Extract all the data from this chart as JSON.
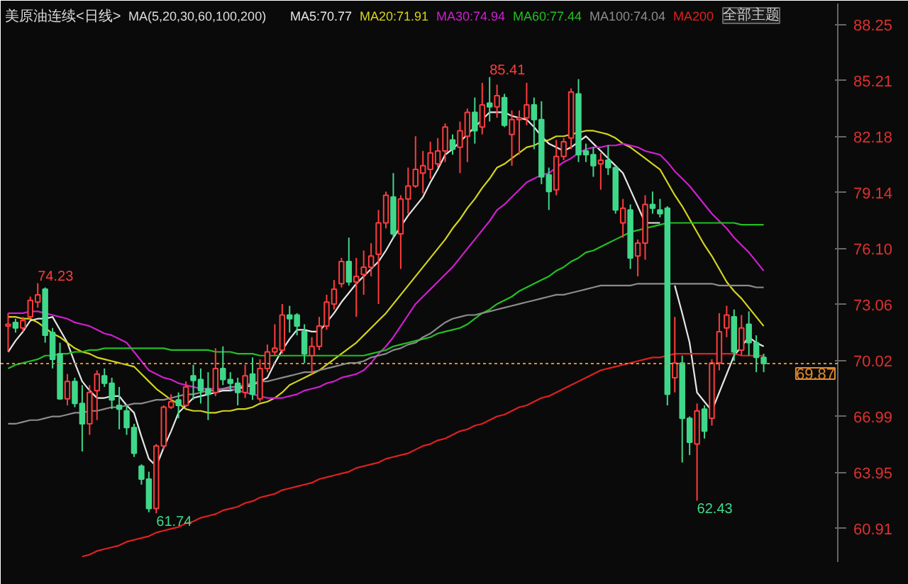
{
  "chart_data": {
    "type": "candlestick",
    "title": "美原油连续<日线>",
    "legend_title": "MA(5,20,30,60,100,200)",
    "grid": false,
    "tick_labels": "y",
    "ylim": [
      59.1,
      89.4
    ],
    "yticks": [
      60.91,
      63.95,
      66.99,
      70.02,
      73.06,
      {
        "value": 76.1,
        "label": "76.10"
      },
      79.14,
      82.18,
      85.21,
      88.25
    ],
    "categories": [
      null,
      null,
      null,
      null,
      null,
      null,
      null,
      null,
      null,
      null,
      null,
      null,
      null,
      null,
      null,
      null,
      null,
      null,
      null,
      null,
      null,
      null,
      null,
      null,
      null,
      null,
      null,
      null,
      null,
      null,
      null,
      null,
      null,
      null,
      null,
      null,
      null,
      null,
      null,
      null,
      null,
      null,
      null,
      null,
      null,
      null,
      null,
      null,
      null,
      null,
      null,
      null,
      null,
      null,
      null,
      null,
      null,
      null,
      null,
      null,
      null,
      null,
      null,
      null,
      null,
      null,
      null,
      null,
      null,
      null,
      null,
      null,
      null,
      null,
      null,
      null,
      null,
      null,
      null,
      null,
      null,
      null,
      null,
      null,
      null,
      null,
      null,
      null,
      null,
      null,
      null,
      null,
      null,
      null,
      null,
      null,
      null,
      null,
      null,
      null,
      null,
      null,
      null
    ],
    "ohlc": [
      [
        71.9,
        72.6,
        70.5,
        72.0
      ],
      [
        72.1,
        72.3,
        71.55,
        71.8
      ],
      [
        71.8,
        72.4,
        71.6,
        72.2
      ],
      [
        72.4,
        73.5,
        72.3,
        73.3
      ],
      [
        73.2,
        74.23,
        72.9,
        73.6
      ],
      [
        73.9,
        74.0,
        71.0,
        71.4
      ],
      [
        71.55,
        71.8,
        69.6,
        70.1
      ],
      [
        70.4,
        71.0,
        67.9,
        67.95
      ],
      [
        67.95,
        69.3,
        67.6,
        68.9
      ],
      [
        68.9,
        69.1,
        67.5,
        67.7
      ],
      [
        67.7,
        68.7,
        65.1,
        66.6
      ],
      [
        66.6,
        68.7,
        66.0,
        68.3
      ],
      [
        68.4,
        69.5,
        66.8,
        69.3
      ],
      [
        69.2,
        69.6,
        68.6,
        68.8
      ],
      [
        68.8,
        69.1,
        67.4,
        67.9
      ],
      [
        67.6,
        68.6,
        66.3,
        67.4
      ],
      [
        67.3,
        67.6,
        66.0,
        66.4
      ],
      [
        66.4,
        66.6,
        64.8,
        65.0
      ],
      [
        64.3,
        64.4,
        63.3,
        63.6
      ],
      [
        63.6,
        64.0,
        61.8,
        62.0
      ],
      [
        62.0,
        65.5,
        61.74,
        65.4
      ],
      [
        65.4,
        67.6,
        65.2,
        67.5
      ],
      [
        67.5,
        68.2,
        67.4,
        67.8
      ],
      [
        67.9,
        68.3,
        66.9,
        67.6
      ],
      [
        67.6,
        68.9,
        67.5,
        68.6
      ],
      [
        69.2,
        69.8,
        67.9,
        68.95
      ],
      [
        69.0,
        69.6,
        67.7,
        68.4
      ],
      [
        68.5,
        69.4,
        66.8,
        68.2
      ],
      [
        68.3,
        70.7,
        68.1,
        69.6
      ],
      [
        69.6,
        70.8,
        68.7,
        69.0
      ],
      [
        69.0,
        69.4,
        68.4,
        68.8
      ],
      [
        68.8,
        69.1,
        67.6,
        68.3
      ],
      [
        68.3,
        69.8,
        68.0,
        69.2
      ],
      [
        69.3,
        70.2,
        67.9,
        68.2
      ],
      [
        67.95,
        70.1,
        67.8,
        69.6
      ],
      [
        69.6,
        70.9,
        69.4,
        70.5
      ],
      [
        70.5,
        72.0,
        70.3,
        70.7
      ],
      [
        70.6,
        73.1,
        70.4,
        72.5
      ],
      [
        72.5,
        73.0,
        71.55,
        72.3
      ],
      [
        72.5,
        72.6,
        71.4,
        71.9
      ],
      [
        71.6,
        72.0,
        69.9,
        70.4
      ],
      [
        70.3,
        71.3,
        69.3,
        70.8
      ],
      [
        70.8,
        72.4,
        70.6,
        71.9
      ],
      [
        71.9,
        73.6,
        71.7,
        73.2
      ],
      [
        73.1,
        74.4,
        72.8,
        73.9
      ],
      [
        74.2,
        75.6,
        74.0,
        75.4
      ],
      [
        75.4,
        76.7,
        74.1,
        74.3
      ],
      [
        74.3,
        75.6,
        72.4,
        74.6
      ],
      [
        74.7,
        76.0,
        73.6,
        75.1
      ],
      [
        75.1,
        76.4,
        74.6,
        75.7
      ],
      [
        75.8,
        78.2,
        73.1,
        77.5
      ],
      [
        77.5,
        79.2,
        77.2,
        79.0
      ],
      [
        78.9,
        80.2,
        76.7,
        76.9
      ],
      [
        76.9,
        79.0,
        75.0,
        78.8
      ],
      [
        78.8,
        80.5,
        78.0,
        79.5
      ],
      [
        79.5,
        82.2,
        79.4,
        80.4
      ],
      [
        80.2,
        81.4,
        79.1,
        80.6
      ],
      [
        80.4,
        81.9,
        79.9,
        81.3
      ],
      [
        80.7,
        82.1,
        80.5,
        81.4
      ],
      [
        81.4,
        82.9,
        80.8,
        82.7
      ],
      [
        82.0,
        82.3,
        81.2,
        81.5
      ],
      [
        81.6,
        83.0,
        80.2,
        82.5
      ],
      [
        82.2,
        83.7,
        80.8,
        83.5
      ],
      [
        83.5,
        84.3,
        81.8,
        82.5
      ],
      [
        82.7,
        85.1,
        82.3,
        83.9
      ],
      [
        84.0,
        85.41,
        83.0,
        83.8
      ],
      [
        83.8,
        85.0,
        83.2,
        84.4
      ],
      [
        84.3,
        84.5,
        82.7,
        82.8
      ],
      [
        82.3,
        83.6,
        80.6,
        83.1
      ],
      [
        83.1,
        83.6,
        81.2,
        83.2
      ],
      [
        83.2,
        85.1,
        82.8,
        83.9
      ],
      [
        83.9,
        84.3,
        81.5,
        83.1
      ],
      [
        83.1,
        84.1,
        79.6,
        80.0
      ],
      [
        80.1,
        80.5,
        78.2,
        79.2
      ],
      [
        79.3,
        82.0,
        79.0,
        81.1
      ],
      [
        81.1,
        82.1,
        80.9,
        81.9
      ],
      [
        82.1,
        84.8,
        81.5,
        84.6
      ],
      [
        84.5,
        85.3,
        80.8,
        81.2
      ],
      [
        81.4,
        81.8,
        80.8,
        81.2
      ],
      [
        81.2,
        81.6,
        80.0,
        80.6
      ],
      [
        80.7,
        81.3,
        79.3,
        80.9
      ],
      [
        80.9,
        81.7,
        80.1,
        80.5
      ],
      [
        80.5,
        80.6,
        78.0,
        78.2
      ],
      [
        77.5,
        78.8,
        76.7,
        78.3
      ],
      [
        78.2,
        78.5,
        75.0,
        75.6
      ],
      [
        75.7,
        76.6,
        74.6,
        76.4
      ],
      [
        76.4,
        79.0,
        75.5,
        78.5
      ],
      [
        78.5,
        79.2,
        78.0,
        78.3
      ],
      [
        78.2,
        78.8,
        77.8,
        78.0
      ],
      [
        78.3,
        78.4,
        67.6,
        68.2
      ],
      [
        69.1,
        72.4,
        68.3,
        69.9
      ],
      [
        69.9,
        70.3,
        64.5,
        66.9
      ],
      [
        66.9,
        67.0,
        64.9,
        65.6
      ],
      [
        65.5,
        67.7,
        62.43,
        67.3
      ],
      [
        67.4,
        67.6,
        65.8,
        66.2
      ],
      [
        66.9,
        70.1,
        66.5,
        69.9
      ],
      [
        69.9,
        72.6,
        69.5,
        71.6
      ],
      [
        71.8,
        73.0,
        71.3,
        72.5
      ],
      [
        72.4,
        72.8,
        70.0,
        70.5
      ],
      [
        70.6,
        72.5,
        70.3,
        71.8
      ],
      [
        72.0,
        72.7,
        70.3,
        71.0
      ],
      [
        71.0,
        71.4,
        69.4,
        70.2
      ],
      [
        70.2,
        70.4,
        69.4,
        69.87
      ]
    ],
    "series": [
      {
        "type": "line",
        "name": "MA5:70.77",
        "color": "#e6e6e6",
        "values": [
          70.5,
          71.1,
          71.6,
          72.2,
          72.3,
          72.3,
          72.4,
          71.7,
          71.0,
          69.9,
          68.9,
          68.4,
          68.0,
          68.0,
          68.1,
          68.1,
          67.6,
          67.2,
          65.9,
          64.7,
          64.3,
          65.3,
          66.2,
          67.2,
          67.6,
          68.0,
          68.1,
          68.2,
          68.3,
          68.4,
          68.4,
          68.5,
          68.6,
          68.7,
          68.9,
          69.1,
          69.9,
          70.6,
          71.2,
          71.7,
          71.7,
          71.6,
          71.6,
          72.1,
          72.6,
          73.2,
          73.7,
          74.2,
          74.6,
          75.0,
          75.4,
          76.0,
          76.7,
          77.3,
          77.9,
          78.4,
          78.9,
          79.7,
          80.4,
          81.2,
          81.5,
          81.9,
          82.3,
          82.7,
          83.1,
          83.5,
          83.5,
          83.5,
          83.3,
          83.2,
          83.1,
          82.7,
          82.2,
          81.8,
          81.6,
          81.4,
          81.6,
          81.9,
          82.2,
          81.8,
          81.4,
          81.0,
          80.6,
          80.2,
          79.3,
          78.4,
          77.5,
          77.5,
          77.5,
          null,
          74.1,
          72.6,
          71.0,
          68.3,
          67.8,
          67.3,
          68.3,
          69.3,
          70.3,
          70.8,
          71.3,
          71.0,
          70.8
        ]
      },
      {
        "type": "line",
        "name": "MA20:71.91",
        "color": "#d4d41e",
        "values": [
          72.4,
          72.4,
          72.3,
          72.3,
          72.1,
          71.8,
          71.5,
          71.3,
          71.0,
          70.7,
          70.5,
          70.4,
          70.2,
          70.1,
          70.0,
          69.9,
          69.8,
          69.7,
          69.3,
          68.9,
          68.5,
          68.2,
          67.9,
          67.7,
          67.4,
          67.3,
          67.3,
          67.2,
          67.2,
          67.3,
          67.3,
          67.4,
          67.4,
          67.5,
          67.7,
          67.8,
          68.0,
          68.3,
          68.7,
          68.9,
          69.1,
          69.3,
          69.5,
          69.8,
          70.1,
          70.4,
          70.7,
          71.0,
          71.4,
          71.8,
          72.2,
          72.6,
          73.1,
          73.6,
          74.1,
          74.6,
          75.1,
          75.6,
          76.1,
          76.6,
          77.2,
          77.7,
          78.3,
          78.8,
          79.4,
          79.9,
          80.5,
          80.7,
          81.0,
          81.3,
          81.6,
          81.7,
          81.9,
          82.0,
          82.2,
          82.2,
          82.3,
          82.4,
          82.5,
          82.5,
          82.4,
          82.3,
          82.1,
          81.8,
          81.6,
          81.3,
          81.0,
          80.7,
          80.4,
          79.7,
          79.0,
          78.4,
          77.7,
          77.0,
          76.3,
          75.7,
          75.0,
          74.3,
          73.8,
          73.4,
          72.9,
          72.4,
          71.9
        ]
      },
      {
        "type": "line",
        "name": "MA30:74.94",
        "color": "#d01fd0",
        "values": [
          72.6,
          72.6,
          72.6,
          72.7,
          72.7,
          72.6,
          72.5,
          72.4,
          72.3,
          72.1,
          72.0,
          71.9,
          71.7,
          71.5,
          71.4,
          71.2,
          71.0,
          70.5,
          70.0,
          69.5,
          69.3,
          69.1,
          69.0,
          68.8,
          68.7,
          68.6,
          68.5,
          68.5,
          68.5,
          68.5,
          68.5,
          68.4,
          68.3,
          68.2,
          68.1,
          68.0,
          68.0,
          68.0,
          68.1,
          68.2,
          68.4,
          68.5,
          68.6,
          68.8,
          68.9,
          69.1,
          69.2,
          69.3,
          69.5,
          69.9,
          70.4,
          70.8,
          71.3,
          71.9,
          72.5,
          73.1,
          73.5,
          73.9,
          74.3,
          74.7,
          75.1,
          75.6,
          76.1,
          76.6,
          77.1,
          77.6,
          78.2,
          78.5,
          78.9,
          79.3,
          79.7,
          79.9,
          80.1,
          80.2,
          80.5,
          80.8,
          81.0,
          81.3,
          81.5,
          81.6,
          81.6,
          81.7,
          81.7,
          81.8,
          81.7,
          81.6,
          81.4,
          81.3,
          81.2,
          80.8,
          80.3,
          79.9,
          79.5,
          79.0,
          78.5,
          78.0,
          77.6,
          77.2,
          76.7,
          76.3,
          75.9,
          75.4,
          74.9
        ]
      },
      {
        "type": "line",
        "name": "MA60:77.44",
        "color": "#22c022",
        "values": [
          69.6,
          69.8,
          69.9,
          70.0,
          70.1,
          70.3,
          70.3,
          70.4,
          70.4,
          70.5,
          70.5,
          70.6,
          70.6,
          70.7,
          70.7,
          70.7,
          70.7,
          70.7,
          70.7,
          70.7,
          70.7,
          70.7,
          70.6,
          70.6,
          70.6,
          70.6,
          70.6,
          70.6,
          70.5,
          70.5,
          70.5,
          70.4,
          70.4,
          70.4,
          70.3,
          70.3,
          70.3,
          70.3,
          70.3,
          70.3,
          70.3,
          70.3,
          70.3,
          70.3,
          70.3,
          70.3,
          70.3,
          70.3,
          70.3,
          70.4,
          70.5,
          70.6,
          70.8,
          70.9,
          71.0,
          71.1,
          71.2,
          71.3,
          71.5,
          71.6,
          71.7,
          71.8,
          72.0,
          72.3,
          72.6,
          72.8,
          73.1,
          73.3,
          73.5,
          73.8,
          74.0,
          74.2,
          74.4,
          74.6,
          74.9,
          75.1,
          75.4,
          75.6,
          75.9,
          76.0,
          76.2,
          76.4,
          76.6,
          76.8,
          77.0,
          77.1,
          77.2,
          77.3,
          77.4,
          77.5,
          77.5,
          77.5,
          77.5,
          77.5,
          77.5,
          77.5,
          77.5,
          77.5,
          77.5,
          77.4,
          77.4,
          77.4,
          77.4
        ]
      },
      {
        "type": "line",
        "name": "MA100:74.04",
        "color": "#8c8c8c",
        "values": [
          66.6,
          66.6,
          66.7,
          66.8,
          66.8,
          66.9,
          67.0,
          67.0,
          67.1,
          67.2,
          67.2,
          67.3,
          67.3,
          67.4,
          67.5,
          67.5,
          67.6,
          67.7,
          67.7,
          67.8,
          67.9,
          67.9,
          68.0,
          68.1,
          68.2,
          68.2,
          68.3,
          68.4,
          68.4,
          68.5,
          68.6,
          68.6,
          68.7,
          68.8,
          68.9,
          68.9,
          69.0,
          69.1,
          69.2,
          69.3,
          69.4,
          69.4,
          69.5,
          69.6,
          69.7,
          69.8,
          69.9,
          69.9,
          70.0,
          70.2,
          70.3,
          70.4,
          70.6,
          70.7,
          70.9,
          71.0,
          71.3,
          71.5,
          71.8,
          72.1,
          72.3,
          72.4,
          72.5,
          72.5,
          72.6,
          72.7,
          72.8,
          72.9,
          73.0,
          73.1,
          73.2,
          73.3,
          73.4,
          73.5,
          73.6,
          73.6,
          73.7,
          73.8,
          73.9,
          74.0,
          74.1,
          74.1,
          74.1,
          74.1,
          74.1,
          74.2,
          74.2,
          74.2,
          74.2,
          74.2,
          74.2,
          74.2,
          74.2,
          74.2,
          74.2,
          74.2,
          74.1,
          74.1,
          74.1,
          74.1,
          74.1,
          74.0,
          74.0
        ]
      },
      {
        "type": "line",
        "name": "MA200",
        "color": "#e02020",
        "values": [
          null,
          null,
          null,
          null,
          null,
          null,
          null,
          null,
          null,
          null,
          59.4,
          59.5,
          59.7,
          59.8,
          59.9,
          60.0,
          60.2,
          60.3,
          60.4,
          60.5,
          60.7,
          60.8,
          60.9,
          61.0,
          61.2,
          61.3,
          61.5,
          61.6,
          61.7,
          61.9,
          62.0,
          62.1,
          62.3,
          62.4,
          62.6,
          62.7,
          62.8,
          63.0,
          63.1,
          63.2,
          63.3,
          63.4,
          63.6,
          63.7,
          63.8,
          63.9,
          64.0,
          64.2,
          64.3,
          64.4,
          64.5,
          64.7,
          64.8,
          64.9,
          65.0,
          65.2,
          65.4,
          65.5,
          65.7,
          65.8,
          66.0,
          66.2,
          66.3,
          66.5,
          66.6,
          66.8,
          67.0,
          67.1,
          67.3,
          67.5,
          67.6,
          67.8,
          68.0,
          68.1,
          68.3,
          68.5,
          68.7,
          68.9,
          69.1,
          69.3,
          69.5,
          69.6,
          69.7,
          69.8,
          69.9,
          70.0,
          70.1,
          70.2,
          70.2,
          70.3,
          70.4,
          70.4,
          70.4,
          70.4,
          70.4,
          70.4,
          70.4,
          70.4,
          70.4,
          70.3,
          70.3,
          70.3,
          70.3
        ]
      }
    ],
    "ref_lines": [
      {
        "axis": "y",
        "value": 69.87,
        "label": "69.87",
        "color": "#e08a2c",
        "line_style": "dotted"
      }
    ],
    "annotations": [
      "74.23",
      "85.41",
      "61.74",
      "62.43",
      "全部主题"
    ]
  }
}
